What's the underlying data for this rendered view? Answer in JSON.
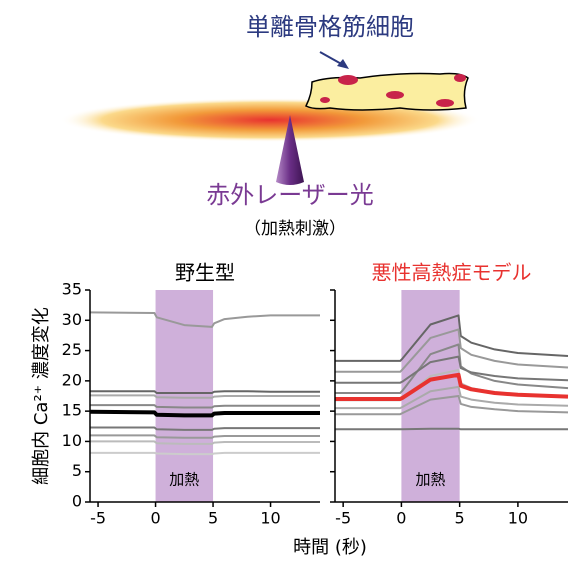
{
  "diagram": {
    "cell_label": "単離骨格筋細胞",
    "laser_label": "赤外レーザー光",
    "stimulus_label": "（加熱刺激）"
  },
  "chart_data": [
    {
      "type": "line",
      "title": "野生型",
      "title_color": "#000000",
      "ylabel": "細胞内 Ca²⁺ 濃度変化",
      "xlabel": "時間 (秒)",
      "shade": {
        "x": [
          0,
          5
        ],
        "label": "加熱",
        "color": "#cfb0da"
      },
      "x": [
        -5.7,
        -0.1,
        0.1,
        2.5,
        4.9,
        5.1,
        6,
        8,
        10,
        14.3
      ],
      "xlim": [
        -5.7,
        14.3
      ],
      "xticks": [
        -5,
        0,
        5,
        10
      ],
      "ylim": [
        0,
        35
      ],
      "yticks": [
        0,
        5,
        10,
        15,
        20,
        25,
        30,
        35
      ],
      "series": [
        {
          "color": "#999999",
          "width": 2,
          "values": [
            31.3,
            31.2,
            30.5,
            29.2,
            28.9,
            29.5,
            30.2,
            30.6,
            30.8,
            30.8
          ]
        },
        {
          "color": "#666666",
          "width": 2,
          "values": [
            18.3,
            18.3,
            18.0,
            18.0,
            18.0,
            18.2,
            18.3,
            18.3,
            18.2,
            18.2
          ]
        },
        {
          "color": "#aaaaaa",
          "width": 2,
          "values": [
            17.6,
            17.6,
            17.3,
            17.2,
            17.2,
            17.4,
            17.5,
            17.5,
            17.5,
            17.5
          ]
        },
        {
          "color": "#888888",
          "width": 2,
          "values": [
            16.0,
            16.0,
            15.7,
            15.6,
            15.6,
            15.8,
            15.9,
            15.9,
            15.9,
            15.9
          ]
        },
        {
          "color": "#777777",
          "width": 2,
          "values": [
            12.3,
            12.3,
            12.0,
            11.9,
            11.9,
            12.1,
            12.2,
            12.2,
            12.2,
            12.2
          ]
        },
        {
          "color": "#999999",
          "width": 2,
          "values": [
            11.0,
            11.0,
            10.7,
            10.6,
            10.6,
            10.8,
            10.9,
            10.9,
            10.9,
            10.9
          ]
        },
        {
          "color": "#bbbbbb",
          "width": 2,
          "values": [
            10.0,
            10.0,
            9.7,
            9.6,
            9.6,
            9.8,
            9.9,
            9.9,
            9.9,
            9.9
          ]
        },
        {
          "color": "#cccccc",
          "width": 2,
          "values": [
            8.1,
            8.1,
            8.0,
            7.9,
            7.9,
            8.0,
            8.1,
            8.1,
            8.1,
            8.1
          ]
        },
        {
          "color": "#000000",
          "width": 4,
          "values": [
            14.9,
            14.8,
            14.4,
            14.3,
            14.3,
            14.6,
            14.7,
            14.7,
            14.7,
            14.7
          ]
        }
      ]
    },
    {
      "type": "line",
      "title": "悪性高熱症モデル",
      "title_color": "#e8322f",
      "shade": {
        "x": [
          0,
          5
        ],
        "label": "加熱",
        "color": "#cfb0da"
      },
      "x": [
        -5.7,
        -0.1,
        0.1,
        2.5,
        4.9,
        5.1,
        6,
        8,
        10,
        14.3
      ],
      "xlim": [
        -5.7,
        14.3
      ],
      "xticks": [
        -5,
        0,
        5,
        10
      ],
      "ylim": [
        0,
        35
      ],
      "yticks": [
        0,
        5,
        10,
        15,
        20,
        25,
        30,
        35
      ],
      "series": [
        {
          "color": "#666666",
          "width": 2,
          "values": [
            23.3,
            23.3,
            23.7,
            29.3,
            30.8,
            27.4,
            26.3,
            25.2,
            24.6,
            24.1
          ]
        },
        {
          "color": "#999999",
          "width": 2,
          "values": [
            21.5,
            21.5,
            21.9,
            27.1,
            28.5,
            25.4,
            24.3,
            23.3,
            22.7,
            22.2
          ]
        },
        {
          "color": "#888888",
          "width": 2,
          "values": [
            18,
            18,
            18.4,
            24.4,
            26,
            22.4,
            21.2,
            20,
            19.4,
            18.8
          ]
        },
        {
          "color": "#777777",
          "width": 2,
          "values": [
            19.7,
            19.7,
            19.9,
            23.1,
            24,
            22.1,
            21.4,
            20.8,
            20.4,
            20.1
          ]
        },
        {
          "color": "#bbbbbb",
          "width": 2,
          "values": [
            16.8,
            16.8,
            17.1,
            20.8,
            21.8,
            19.6,
            18.8,
            18.1,
            17.7,
            17.3
          ]
        },
        {
          "color": "#aaaaaa",
          "width": 2,
          "values": [
            15.5,
            15.5,
            15.7,
            18.3,
            19,
            17.4,
            16.9,
            16.4,
            16.1,
            15.9
          ]
        },
        {
          "color": "#999999",
          "width": 2,
          "values": [
            14.5,
            14.5,
            14.7,
            16.9,
            17.5,
            16.2,
            15.7,
            15.3,
            15,
            14.8
          ]
        },
        {
          "color": "#777777",
          "width": 2,
          "values": [
            12,
            12,
            12,
            12.1,
            12.1,
            12,
            12,
            12,
            12,
            12
          ]
        },
        {
          "color": "#e8322f",
          "width": 4,
          "values": [
            17,
            17,
            17.2,
            20.2,
            21,
            19.2,
            18.6,
            18,
            17.7,
            17.4
          ]
        }
      ]
    }
  ]
}
